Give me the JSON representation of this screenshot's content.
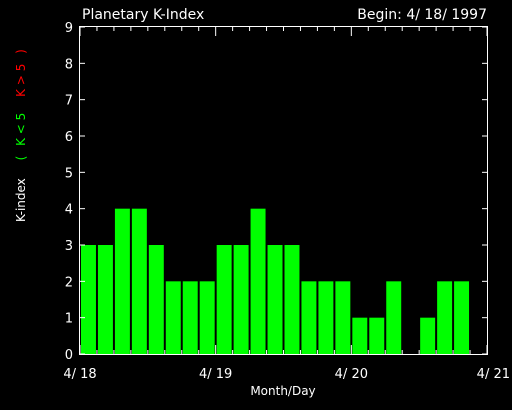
{
  "chart_data": {
    "type": "bar",
    "title": "Planetary K-Index",
    "subtitle": "Begin: 4/ 18/ 1997",
    "xlabel": "Month/Day",
    "ylabel": {
      "prefix": "K-index",
      "open_paren": "(",
      "low_label": "K < 5",
      "high_label": "K > 5",
      "close_paren": ")"
    },
    "ylim": [
      0,
      9
    ],
    "y_ticks": [
      "0",
      "1",
      "2",
      "3",
      "4",
      "5",
      "6",
      "7",
      "8",
      "9"
    ],
    "xlim": [
      0,
      24
    ],
    "x_tick_labels": [
      {
        "x": 0,
        "label": "4/ 18"
      },
      {
        "x": 8,
        "label": "4/ 19"
      },
      {
        "x": 16,
        "label": "4/ 20"
      },
      {
        "x": 24,
        "label": "4/ 21"
      }
    ],
    "values": [
      3,
      3,
      4,
      4,
      3,
      2,
      2,
      2,
      3,
      3,
      4,
      3,
      3,
      2,
      2,
      2,
      1,
      1,
      2,
      0,
      1,
      2,
      2
    ],
    "colors": {
      "background": "#000000",
      "axis": "#ffffff",
      "bar_low": "#00ff00",
      "bar_high": "#ff0000",
      "label_low": "#00ff00",
      "label_high": "#ff0000"
    }
  }
}
